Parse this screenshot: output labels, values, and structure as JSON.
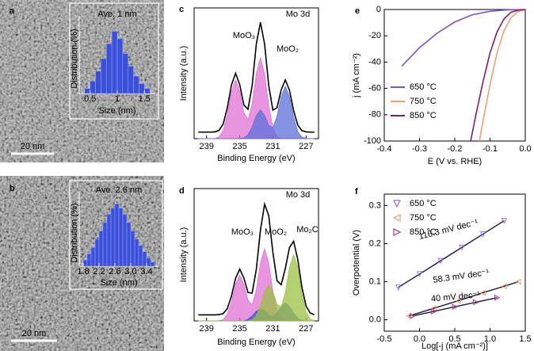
{
  "chart_data": [
    {
      "type": "histogram",
      "label": "a",
      "annotation": "Ave. 1 nm",
      "scale_bar": "20 nm",
      "xlabel": "Size (nm)",
      "ylabel": "Distribution (%)",
      "bins": [
        0.4,
        0.5,
        0.6,
        0.7,
        0.8,
        0.9,
        1.0,
        1.1,
        1.2,
        1.3,
        1.4,
        1.5,
        1.6
      ],
      "counts": [
        2,
        5,
        9,
        14,
        20,
        25,
        22,
        16,
        11,
        7,
        4,
        2
      ],
      "xlim": [
        0.3,
        1.7
      ],
      "xticks": [
        0.5,
        1,
        1.5
      ],
      "ylim": [
        0,
        28
      ],
      "color": "#3b4fd8"
    },
    {
      "type": "histogram",
      "label": "b",
      "annotation": "Ave. 2.6 nm",
      "scale_bar": "20 nm",
      "xlabel": "Size (nm)",
      "ylabel": "Distribution (%)",
      "bins": [
        1.8,
        1.9,
        2.0,
        2.1,
        2.2,
        2.3,
        2.4,
        2.5,
        2.6,
        2.7,
        2.8,
        2.9,
        3.0,
        3.1,
        3.2,
        3.3,
        3.4,
        3.5,
        3.6
      ],
      "counts": [
        3,
        6,
        9,
        13,
        17,
        21,
        25,
        28,
        30,
        28,
        25,
        21,
        17,
        13,
        10,
        7,
        4,
        2
      ],
      "xlim": [
        1.7,
        3.7
      ],
      "xticks": [
        1.8,
        2.2,
        2.6,
        {
          "value": 3,
          "label": "3.0"
        },
        3.4
      ],
      "ylim": [
        0,
        32
      ],
      "color": "#3b4fd8"
    },
    {
      "type": "xps",
      "label": "c",
      "title": "Mo 3d",
      "xlabel": "Binding Energy (eV)",
      "ylabel": "Intensity (a.u.)",
      "xlim": [
        240.5,
        225.5
      ],
      "xticks": [
        239,
        235,
        231,
        227
      ],
      "ylim": [
        0,
        100
      ],
      "envelope_color": "#000000",
      "x": [
        240,
        239.5,
        239,
        238.5,
        238,
        237.5,
        237,
        236.5,
        236,
        235.5,
        235,
        234.5,
        234,
        233.5,
        233,
        232.5,
        232,
        231.5,
        231,
        230.5,
        230,
        229.5,
        229,
        228.5,
        228,
        227.5,
        227,
        226.5,
        226
      ],
      "envelope": [
        5,
        5,
        5,
        5,
        5.2,
        6.3,
        11.1,
        23.5,
        41,
        50,
        41.3,
        25.8,
        22.5,
        40.7,
        72.4,
        89,
        72.4,
        40.5,
        21.8,
        23.7,
        37.3,
        45,
        37,
        21.4,
        10.4,
        6.1,
        5.2,
        5,
        5
      ],
      "series": [
        {
          "name": "MoO₃",
          "color": "#e070d4",
          "values": [
            0,
            0,
            0,
            0,
            0.2,
            1.3,
            6.1,
            18.5,
            36,
            45,
            36.2,
            20.2,
            14.5,
            26.7,
            49.8,
            62,
            49.6,
            25.4,
            8.4,
            1.7,
            0.2,
            0,
            0,
            0,
            0,
            0,
            0,
            0,
            0
          ]
        },
        {
          "name": "MoO₂",
          "color": "#5d6fd8",
          "values": [
            0,
            0,
            0,
            0,
            0,
            0,
            0,
            0,
            0,
            0,
            0.1,
            0.6,
            3,
            9,
            17.6,
            22,
            17.8,
            10.1,
            8.4,
            17,
            32.1,
            40,
            32,
            16.4,
            5.4,
            1.1,
            0.2,
            0,
            0
          ]
        }
      ]
    },
    {
      "type": "xps",
      "label": "d",
      "title": "Mo 3d",
      "xlabel": "Binding Energy (eV)",
      "ylabel": "Intensity (a.u.)",
      "xlim": [
        240.5,
        225.5
      ],
      "xticks": [
        239,
        235,
        231,
        227
      ],
      "ylim": [
        0,
        110
      ],
      "envelope_color": "#000000",
      "x": [
        240,
        239.5,
        239,
        238.5,
        238,
        237.5,
        237,
        236.5,
        236,
        235.5,
        235,
        234.5,
        234,
        233.5,
        233,
        232.5,
        232,
        231.5,
        231,
        230.5,
        230,
        229.5,
        229,
        228.5,
        228,
        227.5,
        227,
        226.5,
        226
      ],
      "envelope": [
        5,
        5,
        5,
        5,
        5,
        5.2,
        6.1,
        10.1,
        20.6,
        35.4,
        43,
        35.6,
        23.6,
        23.1,
        42.8,
        75.5,
        97,
        87.5,
        57,
        33.4,
        30.1,
        43.6,
        61,
        66.2,
        51,
        28,
        12.4,
        6.5,
        5.2
      ],
      "series": [
        {
          "name": "MoO₃",
          "color": "#e070d4",
          "values": [
            0,
            0,
            0,
            0,
            0,
            0.2,
            1.1,
            5.1,
            15.6,
            30.4,
            38,
            30.6,
            17.2,
            13.2,
            25.7,
            48.2,
            60,
            48,
            24.6,
            8.1,
            1.6,
            0.2,
            0,
            0,
            0,
            0,
            0,
            0,
            0
          ]
        },
        {
          "name": "MoO₂",
          "color": "#3f58d0",
          "values": [
            0,
            0,
            0,
            0,
            0,
            0,
            0,
            0,
            0,
            0,
            0,
            0,
            1.4,
            4.1,
            8,
            10,
            8,
            4.5,
            3.4,
            6.5,
            12,
            15,
            12,
            6.2,
            2,
            0.4,
            0,
            0,
            0
          ]
        },
        {
          "name": "Mo₂C",
          "color": "#9cc040",
          "values": [
            0,
            0,
            0,
            0,
            0,
            0,
            0,
            0,
            0,
            0,
            0,
            0,
            0,
            0.8,
            4.1,
            12.3,
            24,
            30,
            24,
            13.8,
            11.5,
            23.4,
            44,
            55,
            44,
            22.6,
            7.4,
            1.5,
            0.2
          ]
        }
      ]
    },
    {
      "type": "line",
      "label": "e",
      "xlabel": "E (V vs. RHE)",
      "ylabel": "j (mA cm⁻²)",
      "legend": "lower left",
      "xlim": [
        -0.4,
        0
      ],
      "xticks": [
        -0.4,
        -0.3,
        -0.2,
        -0.1,
        {
          "value": 0,
          "label": "0.0"
        }
      ],
      "ylim": [
        -100,
        0
      ],
      "yticks": [
        -100,
        -80,
        -60,
        -40,
        -20,
        0
      ],
      "series": [
        {
          "name": "650 °C",
          "color": "#7a55c8",
          "x": [
            -0.35,
            -0.3,
            -0.25,
            -0.2,
            -0.15,
            -0.1,
            -0.05,
            0
          ],
          "values": [
            -43,
            -29,
            -18,
            -9.5,
            -4,
            -1.3,
            -0.3,
            0
          ]
        },
        {
          "name": "750 °C",
          "color": "#f0a070",
          "x": [
            -0.13,
            -0.12,
            -0.1,
            -0.08,
            -0.06,
            -0.04,
            -0.02,
            0
          ],
          "values": [
            -100,
            -85,
            -57,
            -33,
            -16,
            -6,
            -1.5,
            0
          ]
        },
        {
          "name": "850 °C",
          "color": "#8b1a6b",
          "x": [
            -0.155,
            -0.14,
            -0.12,
            -0.1,
            -0.08,
            -0.06,
            -0.04,
            -0.02,
            0
          ],
          "values": [
            -100,
            -80,
            -55,
            -33,
            -17,
            -7,
            -2,
            -0.5,
            0
          ]
        }
      ]
    },
    {
      "type": "scatter",
      "label": "f",
      "xlabel": "Log[-j (mA cm⁻²)]",
      "ylabel": "Overpotential (V)",
      "legend": "upper left",
      "fit_color": "#1a1a40",
      "xlim": [
        -0.5,
        1.5
      ],
      "xticks": [
        -0.5,
        {
          "value": 0,
          "label": "0.0"
        },
        0.5,
        {
          "value": 1,
          "label": "1.0"
        },
        1.5
      ],
      "ylim": [
        -0.03,
        0.33
      ],
      "yticks": [
        {
          "value": 0,
          "label": "0.0"
        },
        0.1,
        0.2,
        0.3
      ],
      "annotations": [
        "116.3 mV dec⁻¹",
        "58.3 mV dec⁻¹",
        "40 mV dec⁻¹"
      ],
      "series": [
        {
          "name": "650 °C",
          "color": "#9a70d8",
          "marker": "triangle_down",
          "x": [
            -0.3,
            0,
            0.3,
            0.6,
            0.9,
            1.2
          ],
          "values": [
            0.085,
            0.12,
            0.155,
            0.19,
            0.225,
            0.26
          ]
        },
        {
          "name": "750 °C",
          "color": "#f0a070",
          "marker": "triangle_left",
          "x": [
            -0.15,
            0.2,
            0.55,
            0.9,
            1.2,
            1.4
          ],
          "values": [
            0.01,
            0.03,
            0.05,
            0.071,
            0.088,
            0.1
          ]
        },
        {
          "name": "850 °C",
          "color": "#b03a90",
          "marker": "triangle_right",
          "x": [
            -0.1,
            0.2,
            0.5,
            0.8,
            1.1
          ],
          "values": [
            0.01,
            0.022,
            0.034,
            0.046,
            0.058
          ]
        }
      ]
    }
  ]
}
